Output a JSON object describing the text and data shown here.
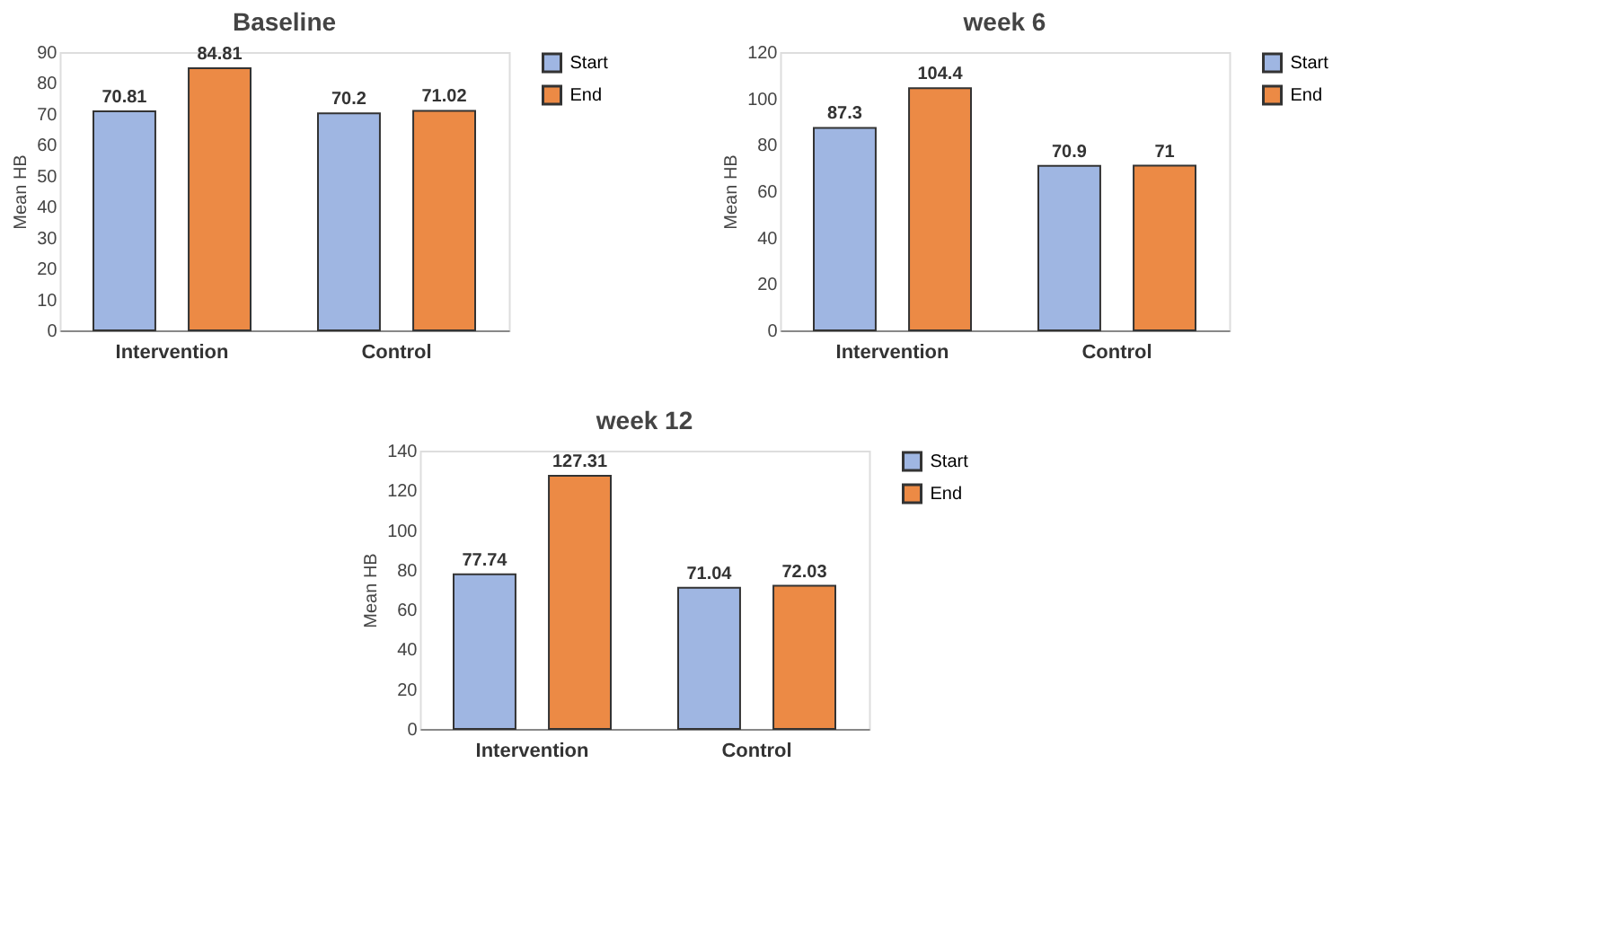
{
  "chart_data": [
    {
      "type": "bar",
      "title": "Baseline",
      "ylabel": "Mean HB",
      "categories": [
        "Intervention",
        "Control"
      ],
      "series": [
        {
          "name": "Start",
          "color": "#9fb6e2",
          "values": [
            70.81,
            70.2
          ]
        },
        {
          "name": "End",
          "color": "#ec8a45",
          "values": [
            84.81,
            71.02
          ]
        }
      ],
      "ylim": [
        0,
        90
      ],
      "yticks": [
        0,
        10,
        20,
        30,
        40,
        50,
        60,
        70,
        80,
        90
      ],
      "data_labels": true,
      "legend": "right",
      "grid": false
    },
    {
      "type": "bar",
      "title": "week 6",
      "ylabel": "Mean HB",
      "categories": [
        "Intervention",
        "Control"
      ],
      "series": [
        {
          "name": "Start",
          "color": "#9fb6e2",
          "values": [
            87.3,
            70.9
          ]
        },
        {
          "name": "End",
          "color": "#ec8a45",
          "values": [
            104.4,
            71
          ]
        }
      ],
      "ylim": [
        0,
        120
      ],
      "yticks": [
        0,
        20,
        40,
        60,
        80,
        100,
        120
      ],
      "data_labels": true,
      "legend": "right",
      "grid": false
    },
    {
      "type": "bar",
      "title": "week 12",
      "ylabel": "Mean HB",
      "categories": [
        "Intervention",
        "Control"
      ],
      "series": [
        {
          "name": "Start",
          "color": "#9fb6e2",
          "values": [
            77.74,
            71.04
          ]
        },
        {
          "name": "End",
          "color": "#ec8a45",
          "values": [
            127.31,
            72.03
          ]
        }
      ],
      "ylim": [
        0,
        140
      ],
      "yticks": [
        0,
        20,
        40,
        60,
        80,
        100,
        120,
        140
      ],
      "data_labels": true,
      "legend": "right",
      "grid": false
    }
  ]
}
